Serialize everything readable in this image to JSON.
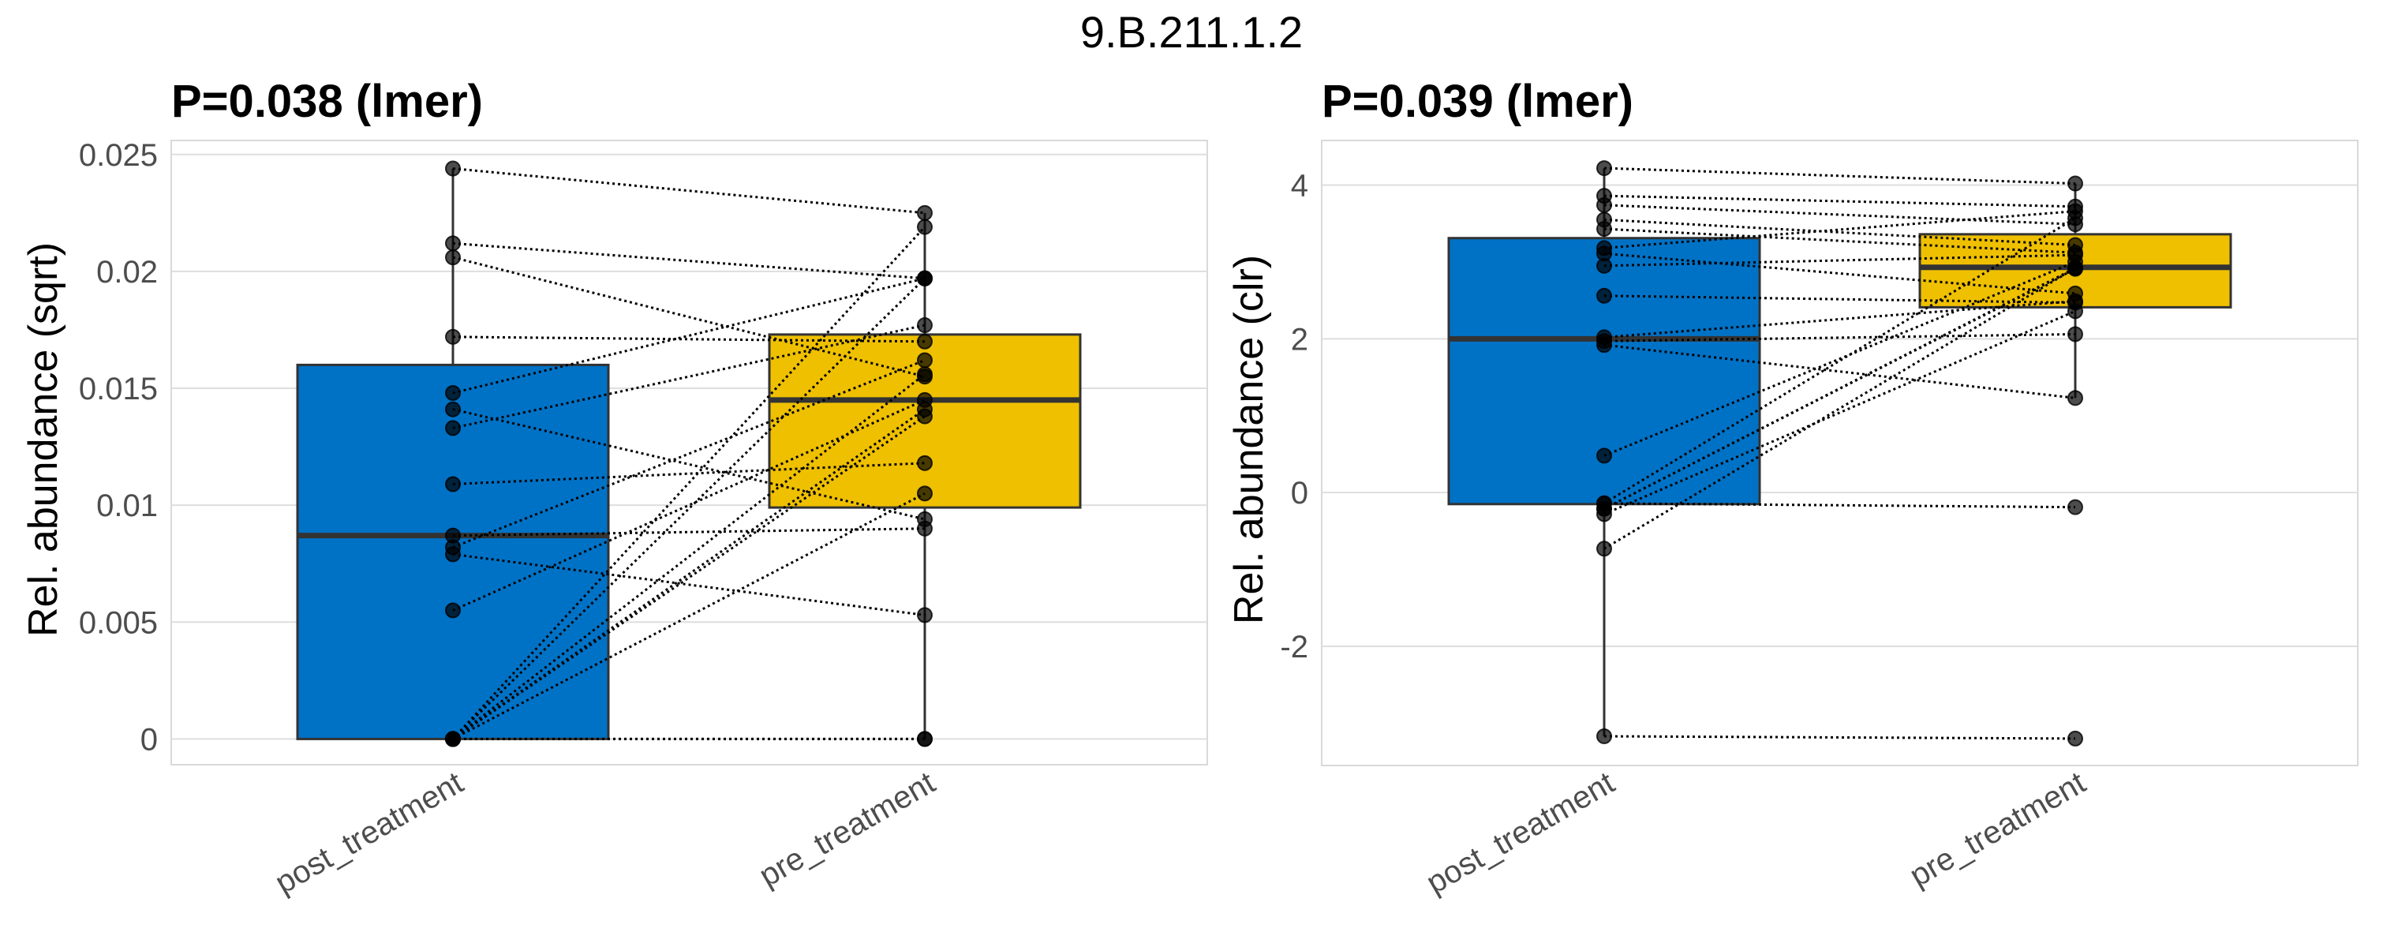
{
  "figure_title": "9.B.211.1.2",
  "chart_data": [
    {
      "type": "box",
      "title": "P=0.038 (lmer)",
      "xlabel": "",
      "ylabel": "Rel. abundance (sqrt)",
      "categories": [
        "post_treatment",
        "pre_treatment"
      ],
      "yticks": [
        0,
        0.005,
        0.01,
        0.015,
        0.02,
        0.025
      ],
      "ytick_labels": [
        "0",
        "0.005",
        "0.01",
        "0.015",
        "0.02",
        "0.025"
      ],
      "ylim": [
        -0.0011,
        0.0256
      ],
      "grid": true,
      "box_colors": [
        "#0072c6",
        "#efc000"
      ],
      "boxes": [
        {
          "category": "post_treatment",
          "q1": 0,
          "median": 0.0087,
          "q3": 0.016,
          "whisker_low": 0,
          "whisker_high": 0.0244
        },
        {
          "category": "pre_treatment",
          "q1": 0.0099,
          "median": 0.0145,
          "q3": 0.0173,
          "whisker_low": 0,
          "whisker_high": 0.0225
        }
      ],
      "pairs": [
        [
          0.0244,
          0.0225
        ],
        [
          0.0212,
          0.0197
        ],
        [
          0.0206,
          0.0155
        ],
        [
          0.0172,
          0.017
        ],
        [
          0.0148,
          0.0197
        ],
        [
          0.0141,
          0.0094
        ],
        [
          0.0133,
          0.0177
        ],
        [
          0.0109,
          0.0118
        ],
        [
          0.0087,
          0.009
        ],
        [
          0.0082,
          0.0162
        ],
        [
          0.0079,
          0.0053
        ],
        [
          0.0055,
          0.0145
        ],
        [
          0,
          0.0219
        ],
        [
          0,
          0.0197
        ],
        [
          0,
          0.0156
        ],
        [
          0,
          0.0141
        ],
        [
          0,
          0.0138
        ],
        [
          0,
          0.0105
        ],
        [
          0,
          0
        ],
        [
          0,
          0
        ]
      ]
    },
    {
      "type": "box",
      "title": "P=0.039 (lmer)",
      "xlabel": "",
      "ylabel": "Rel. abundance (clr)",
      "categories": [
        "post_treatment",
        "pre_treatment"
      ],
      "yticks": [
        -2,
        0,
        2,
        4
      ],
      "ytick_labels": [
        "-2",
        "0",
        "2",
        "4"
      ],
      "ylim": [
        -3.55,
        4.58
      ],
      "grid": true,
      "box_colors": [
        "#0072c6",
        "#efc000"
      ],
      "boxes": [
        {
          "category": "post_treatment",
          "q1": -0.15,
          "median": 2.0,
          "q3": 3.31,
          "whisker_low": -3.17,
          "whisker_high": 4.22
        },
        {
          "category": "pre_treatment",
          "q1": 2.41,
          "median": 2.93,
          "q3": 3.36,
          "whisker_low": 1.23,
          "whisker_high": 4.02
        }
      ],
      "pairs": [
        [
          4.22,
          4.02
        ],
        [
          3.86,
          3.72
        ],
        [
          3.74,
          3.49
        ],
        [
          3.55,
          3.22
        ],
        [
          3.43,
          3.12
        ],
        [
          3.18,
          3.66
        ],
        [
          3.11,
          2.59
        ],
        [
          2.95,
          3.09
        ],
        [
          2.56,
          2.47
        ],
        [
          2.02,
          2.49
        ],
        [
          1.97,
          2.06
        ],
        [
          1.92,
          1.23
        ],
        [
          0.48,
          3.0
        ],
        [
          -0.14,
          3.57
        ],
        [
          -0.14,
          -0.19
        ],
        [
          -0.21,
          2.92
        ],
        [
          -0.21,
          2.91
        ],
        [
          -0.28,
          2.36
        ],
        [
          -0.73,
          2.92
        ],
        [
          -3.17,
          -3.2
        ]
      ]
    }
  ]
}
